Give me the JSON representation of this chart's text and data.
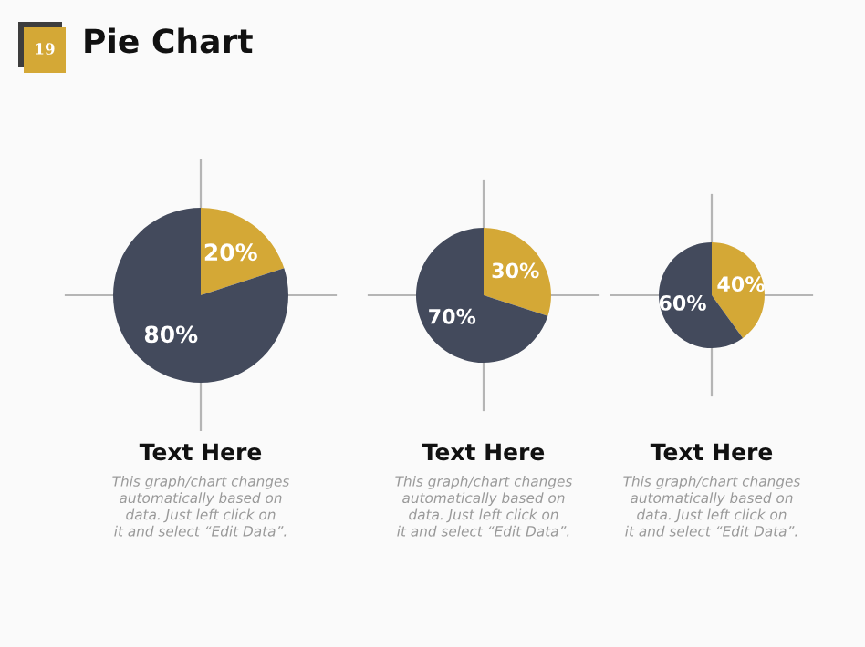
{
  "chart_data": [
    {
      "type": "other",
      "title": "Pie Chart",
      "annotations": [
        "19"
      ]
    },
    {
      "type": "pie",
      "xlabel": "Text Here",
      "annotations": [
        "This graph/chart changes\nautomatically based on\ndata. Just left click on\nit and select “Edit Data”."
      ],
      "categories": [
        null,
        null
      ],
      "values": [
        20,
        80
      ],
      "colors": [
        "#d4a836",
        "#434a5c"
      ],
      "value_labels": [
        "20%",
        "80%"
      ]
    },
    {
      "type": "pie",
      "xlabel": "Text Here",
      "annotations": [
        "This graph/chart changes\nautomatically based on\ndata. Just left click on\nit and select “Edit Data”."
      ],
      "categories": [
        null,
        null
      ],
      "values": [
        30,
        70
      ],
      "colors": [
        "#d4a836",
        "#434a5c"
      ],
      "value_labels": [
        "30%",
        "70%"
      ]
    },
    {
      "type": "pie",
      "xlabel": "Text Here",
      "annotations": [
        "This graph/chart changes\nautomatically based on\ndata. Just left click on\nit and select “Edit Data”."
      ],
      "categories": [
        null,
        null
      ],
      "values": [
        40,
        60
      ],
      "colors": [
        "#d4a836",
        "#434a5c"
      ],
      "value_labels": [
        "40%",
        "60%"
      ]
    }
  ]
}
